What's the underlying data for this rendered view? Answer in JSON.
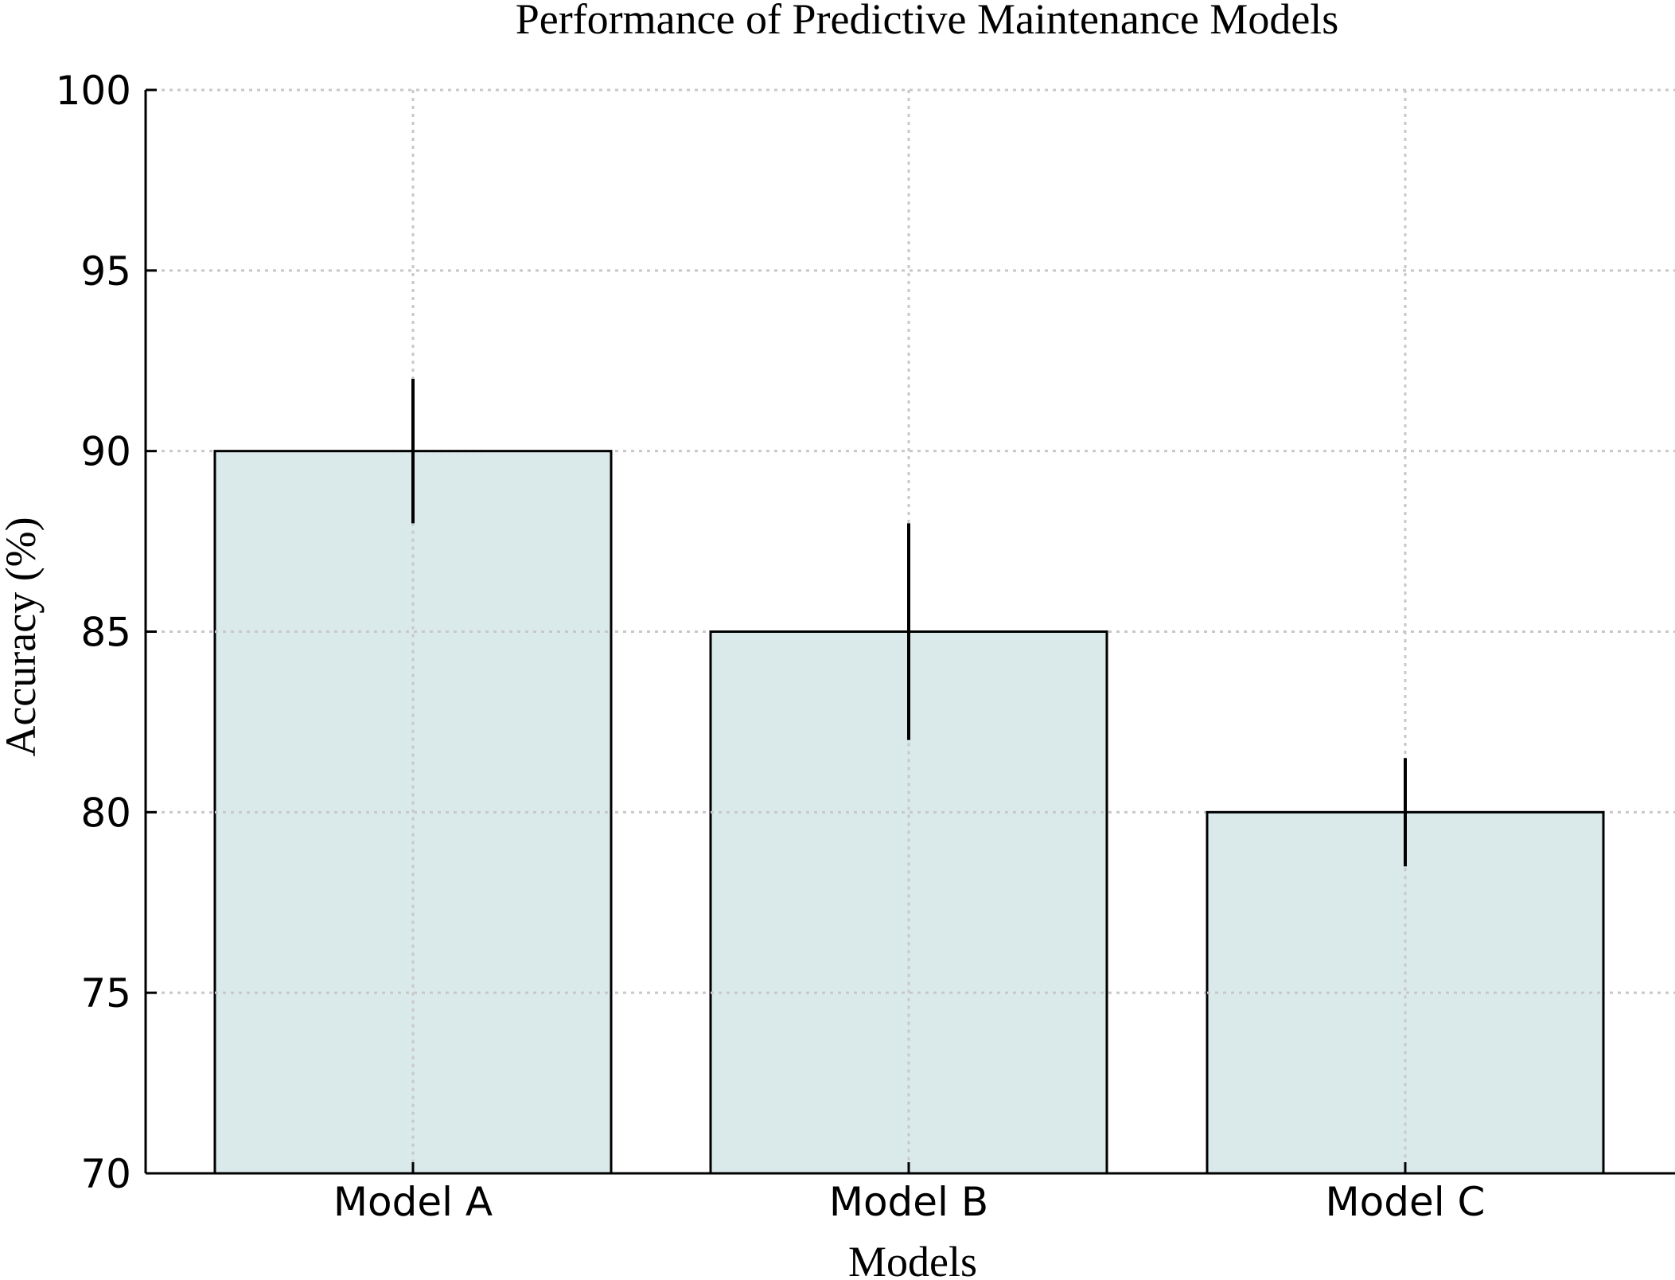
{
  "chart_data": {
    "type": "bar",
    "title": "Performance of Predictive Maintenance Models",
    "xlabel": "Models",
    "ylabel": "Accuracy (%)",
    "categories": [
      "Model A",
      "Model B",
      "Model C"
    ],
    "values": [
      90,
      85,
      80
    ],
    "errors": [
      2,
      3,
      1.5
    ],
    "ylim": [
      70,
      100
    ],
    "yticks": [
      70,
      75,
      80,
      85,
      90,
      95,
      100
    ],
    "ytick_labels": [
      "70",
      "75",
      "80",
      "85",
      "90",
      "95",
      "100"
    ],
    "grid": true,
    "legend": "none",
    "colors": {
      "bar_fill": "#daeaeb",
      "bar_edge": "#000000",
      "error_bar": "#000000",
      "grid": "#c8c8c8"
    }
  }
}
